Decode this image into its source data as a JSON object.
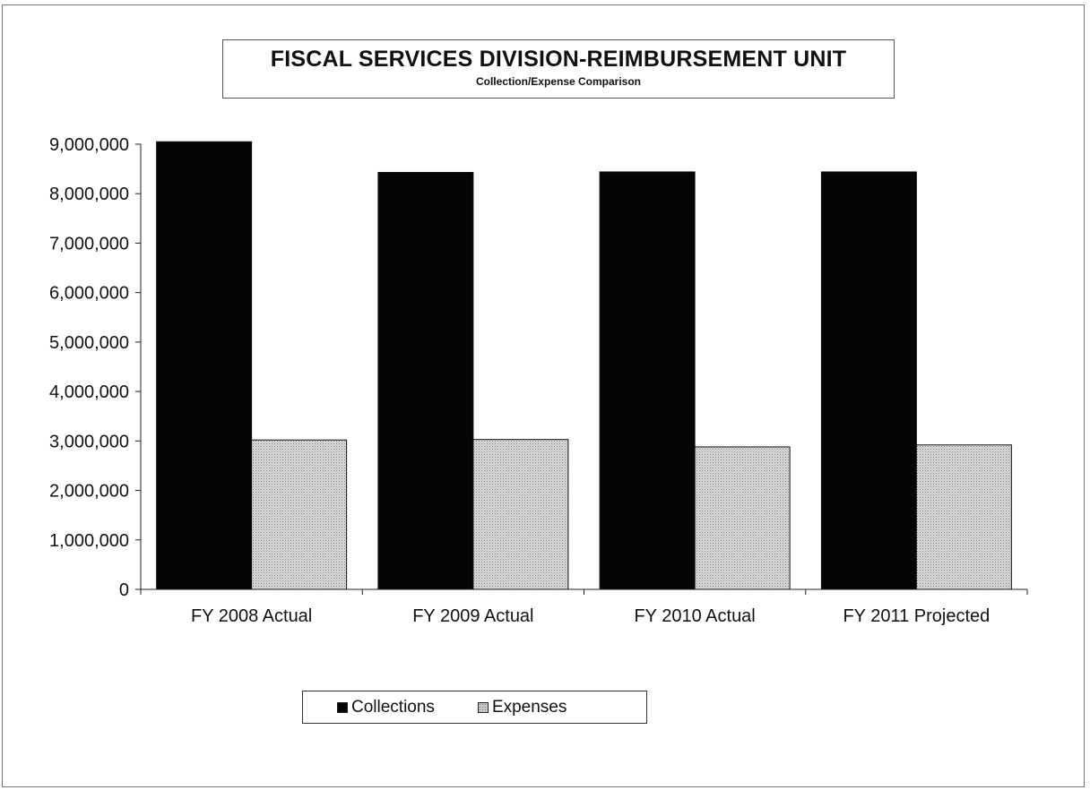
{
  "chart_data": {
    "type": "bar",
    "title": "FISCAL SERVICES DIVISION-REIMBURSEMENT UNIT",
    "subtitle": "Collection/Expense Comparison",
    "xlabel": "",
    "ylabel": "",
    "categories": [
      "FY 2008 Actual",
      "FY 2009 Actual",
      "FY 2010 Actual",
      "FY 2011 Projected"
    ],
    "series": [
      {
        "name": "Collections",
        "values": [
          9050000,
          8430000,
          8440000,
          8440000
        ],
        "color": "#050505"
      },
      {
        "name": "Expenses",
        "values": [
          3020000,
          3030000,
          2880000,
          2920000
        ],
        "color": "#c6c6c6"
      }
    ],
    "ylim": [
      0,
      9000000
    ],
    "yticks": [
      0,
      1000000,
      2000000,
      3000000,
      4000000,
      5000000,
      6000000,
      7000000,
      8000000,
      9000000
    ],
    "ytick_labels": [
      "0",
      "1,000,000",
      "2,000,000",
      "3,000,000",
      "4,000,000",
      "5,000,000",
      "6,000,000",
      "7,000,000",
      "8,000,000",
      "9,000,000"
    ],
    "grid": false,
    "legend_position": "bottom"
  }
}
